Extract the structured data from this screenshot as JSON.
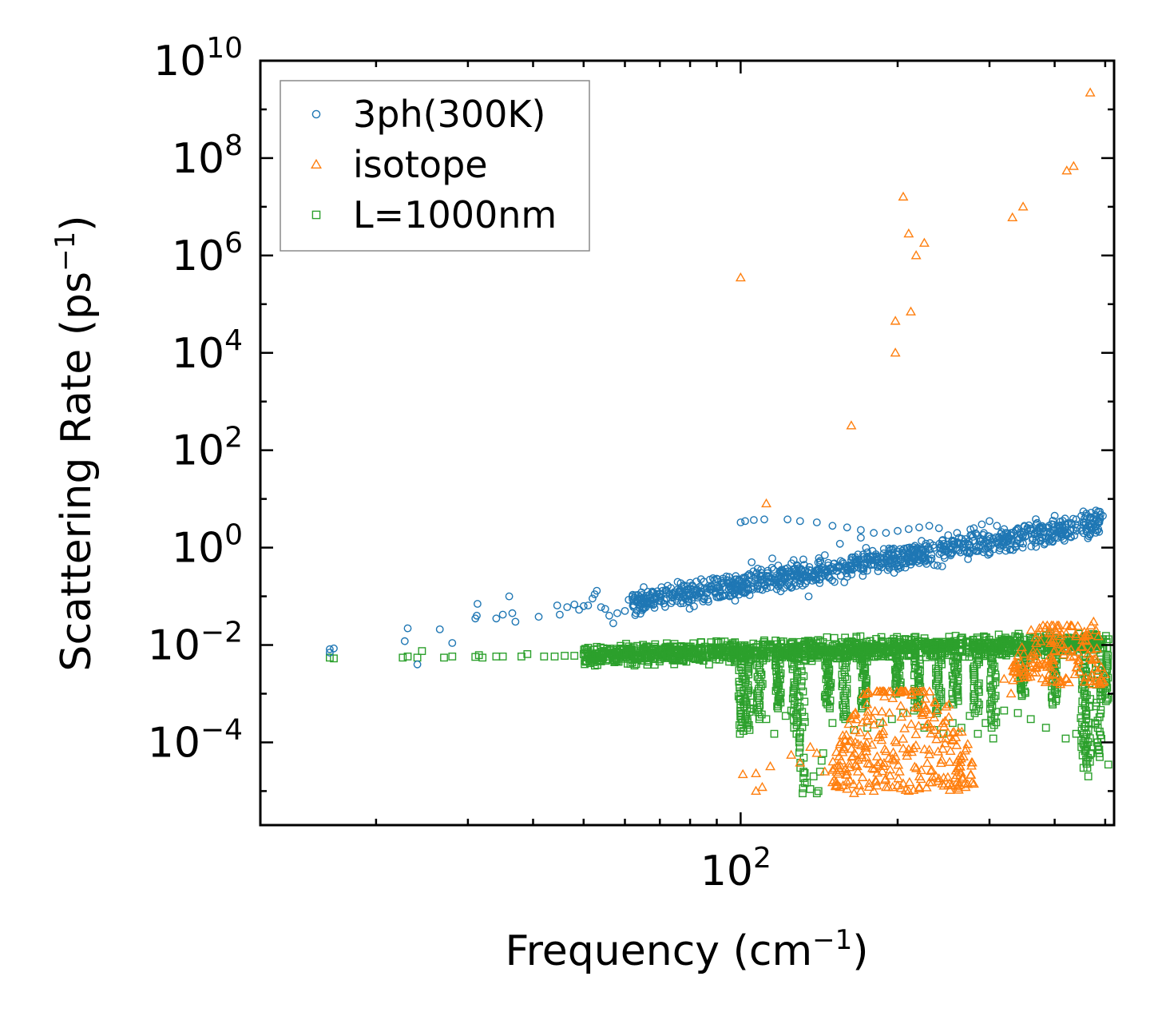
{
  "chart_data": {
    "type": "scatter",
    "title": "",
    "xlabel": "Frequency (cm",
    "xlabel_sup": "−1",
    "xlabel_end": ")",
    "ylabel": "Scattering Rate (ps",
    "ylabel_sup": "−1",
    "ylabel_end": ")",
    "xscale": "log",
    "yscale": "log",
    "xlim": [
      12,
      520
    ],
    "ylim": [
      2e-06,
      10000000000.0
    ],
    "x_ticks": [
      {
        "value": 100,
        "base": "10",
        "exp": "2"
      }
    ],
    "y_ticks": [
      {
        "value": 0.0001,
        "base": "10",
        "exp": "−4"
      },
      {
        "value": 0.01,
        "base": "10",
        "exp": "−2"
      },
      {
        "value": 1,
        "base": "10",
        "exp": "0"
      },
      {
        "value": 100.0,
        "base": "10",
        "exp": "2"
      },
      {
        "value": 10000.0,
        "base": "10",
        "exp": "4"
      },
      {
        "value": 1000000.0,
        "base": "10",
        "exp": "6"
      },
      {
        "value": 100000000.0,
        "base": "10",
        "exp": "8"
      },
      {
        "value": 10000000000.0,
        "base": "10",
        "exp": "10"
      }
    ],
    "legend_position": "top-left",
    "grid": false,
    "series": [
      {
        "name": "3ph(300K)",
        "marker": "circle",
        "color": "#1f77b4",
        "points": [
          [
            16.3,
            0.0082
          ],
          [
            16.6,
            0.0085
          ],
          [
            16.3,
            0.007
          ],
          [
            23,
            0.022
          ],
          [
            22.7,
            0.012
          ],
          [
            24,
            0.004
          ],
          [
            26.5,
            0.021
          ],
          [
            28,
            0.011
          ],
          [
            31.3,
            0.07
          ],
          [
            31,
            0.035
          ],
          [
            31.2,
            0.04
          ],
          [
            36,
            0.1
          ],
          [
            36.5,
            0.045
          ],
          [
            35,
            0.042
          ],
          [
            34,
            0.035
          ],
          [
            37,
            0.03
          ],
          [
            41,
            0.038
          ],
          [
            44.5,
            0.065
          ],
          [
            45,
            0.042
          ],
          [
            46.5,
            0.06
          ],
          [
            48,
            0.068
          ],
          [
            49,
            0.053
          ],
          [
            50,
            0.063
          ],
          [
            51,
            0.065
          ],
          [
            52,
            0.09
          ],
          [
            53,
            0.13
          ],
          [
            54,
            0.06
          ],
          [
            55,
            0.055
          ],
          [
            56,
            0.04
          ],
          [
            57,
            0.028
          ],
          [
            52.5,
            0.11
          ],
          [
            58,
            0.045
          ],
          [
            60,
            0.05
          ],
          [
            61,
            0.085
          ],
          [
            62,
            0.1
          ],
          [
            63,
            0.045
          ],
          [
            64,
            0.09
          ],
          [
            65,
            0.055
          ],
          [
            66,
            0.07
          ],
          [
            68,
            0.12
          ],
          [
            70,
            0.11
          ],
          [
            72,
            0.09
          ],
          [
            74,
            0.08
          ],
          [
            76,
            0.12
          ],
          [
            78,
            0.16
          ],
          [
            80,
            0.19
          ],
          [
            85,
            0.2
          ],
          [
            90,
            0.23
          ],
          [
            95,
            0.25
          ],
          [
            100,
            3.3
          ],
          [
            102,
            3.5
          ],
          [
            106,
            3.7
          ],
          [
            111,
            3.8
          ],
          [
            123,
            3.8
          ],
          [
            130,
            3.5
          ],
          [
            140,
            3.3
          ],
          [
            150,
            2.8
          ],
          [
            160,
            2.6
          ],
          [
            170,
            2.3
          ],
          [
            180,
            2.0
          ],
          [
            175,
            0.8
          ],
          [
            165,
            0.5
          ],
          [
            150,
            0.4
          ],
          [
            140,
            0.35
          ],
          [
            130,
            0.25
          ],
          [
            125,
            0.15
          ],
          [
            135,
            0.1
          ],
          [
            120,
            0.3
          ],
          [
            110,
            0.22
          ],
          [
            105,
            0.5
          ],
          [
            115,
            0.6
          ],
          [
            145,
            0.7
          ],
          [
            155,
            1.2
          ],
          [
            170,
            1.6
          ],
          [
            190,
            2.0
          ],
          [
            200,
            2.2
          ],
          [
            210,
            2.4
          ],
          [
            220,
            2.6
          ],
          [
            230,
            2.8
          ],
          [
            240,
            2.5
          ],
          [
            250,
            1.8
          ],
          [
            255,
            1.4
          ],
          [
            260,
            2.0
          ],
          [
            270,
            1.5
          ],
          [
            280,
            2.5
          ],
          [
            290,
            3.0
          ],
          [
            300,
            3.5
          ],
          [
            310,
            2.8
          ],
          [
            320,
            2.4
          ],
          [
            330,
            2.0
          ],
          [
            340,
            2.5
          ],
          [
            350,
            2.8
          ],
          [
            360,
            2.3
          ],
          [
            370,
            2.2
          ],
          [
            380,
            2.6
          ],
          [
            390,
            2.8
          ],
          [
            395,
            1.8
          ],
          [
            400,
            1.6
          ],
          [
            410,
            2.8
          ],
          [
            420,
            2.6
          ],
          [
            430,
            3.2
          ],
          [
            440,
            3.8
          ],
          [
            450,
            4.5
          ],
          [
            460,
            5.0
          ],
          [
            470,
            5.2
          ],
          [
            480,
            5.8
          ],
          [
            485,
            5.5
          ],
          [
            490,
            4.8
          ],
          [
            495,
            4.5
          ],
          [
            470,
            3.0
          ],
          [
            460,
            2.2
          ],
          [
            475,
            2.5
          ],
          [
            455,
            3.3
          ]
        ],
        "band": {
          "x_start": 62,
          "x_end": 490,
          "y_start": 0.07,
          "y_end": 3.2,
          "spread": 2.4,
          "count": 950
        }
      },
      {
        "name": "isotope",
        "marker": "triangle",
        "color": "#ff7f0e",
        "points": [
          [
            468,
            2200000000.0
          ],
          [
            435,
            68000000.0
          ],
          [
            422,
            55000000.0
          ],
          [
            348,
            10000000.0
          ],
          [
            332,
            6000000.0
          ],
          [
            205,
            16000000.0
          ],
          [
            210,
            2800000.0
          ],
          [
            225,
            1800000.0
          ],
          [
            217,
            1000000.0
          ],
          [
            100,
            350000.0
          ],
          [
            198,
            45000.0
          ],
          [
            212,
            70000.0
          ],
          [
            198,
            10000.0
          ],
          [
            163,
            320.0
          ],
          [
            112,
            8.0
          ],
          [
            101,
            2.2e-05
          ],
          [
            107,
            2.3e-05
          ],
          [
            110,
            1.2e-05
          ],
          [
            114,
            3.2e-05
          ],
          [
            107,
            1e-05
          ],
          [
            125,
            5.5e-05
          ],
          [
            130,
            3.8e-05
          ],
          [
            136,
            8e-05
          ],
          [
            140,
            6e-05
          ],
          [
            145,
            2.5e-05
          ],
          [
            150,
            1.5e-05
          ],
          [
            155,
            1.2e-05
          ],
          [
            160,
            1.1e-05
          ],
          [
            165,
            9e-06
          ],
          [
            170,
            1e-05
          ],
          [
            180,
            1e-05
          ],
          [
            190,
            1.2e-05
          ],
          [
            200,
            1.3e-05
          ],
          [
            210,
            1e-05
          ],
          [
            220,
            1.2e-05
          ],
          [
            230,
            1.5e-05
          ],
          [
            240,
            1.8e-05
          ],
          [
            250,
            1.3e-05
          ],
          [
            260,
            1.5e-05
          ],
          [
            270,
            1.2e-05
          ],
          [
            280,
            1.4e-05
          ],
          [
            380,
            0.025
          ],
          [
            390,
            0.018
          ],
          [
            395,
            0.012
          ],
          [
            400,
            0.02
          ],
          [
            405,
            0.022
          ],
          [
            410,
            0.015
          ],
          [
            415,
            0.01
          ],
          [
            430,
            0.008
          ],
          [
            440,
            0.015
          ],
          [
            450,
            0.009
          ],
          [
            460,
            0.012
          ],
          [
            470,
            0.025
          ],
          [
            475,
            0.03
          ],
          [
            480,
            0.02
          ],
          [
            485,
            0.015
          ],
          [
            340,
            0.006
          ],
          [
            360,
            0.005
          ],
          [
            370,
            0.007
          ],
          [
            320,
            0.002
          ],
          [
            330,
            0.001
          ]
        ],
        "clusters": [
          {
            "x_start": 150,
            "x_end": 280,
            "y_min": 1e-05,
            "y_max": 0.0011,
            "count": 280
          },
          {
            "x_start": 330,
            "x_end": 500,
            "y_min": 0.0015,
            "y_max": 0.025,
            "count": 140
          }
        ]
      },
      {
        "name": "L=1000nm",
        "marker": "square",
        "color": "#2ca02c",
        "points": [
          [
            16.3,
            0.0055
          ],
          [
            16.6,
            0.0053
          ],
          [
            22.5,
            0.0055
          ],
          [
            23,
            0.0058
          ],
          [
            24,
            0.0055
          ],
          [
            24.5,
            0.0075
          ],
          [
            27,
            0.0055
          ],
          [
            28,
            0.0058
          ],
          [
            31,
            0.0057
          ],
          [
            32,
            0.0055
          ],
          [
            31.5,
            0.0062
          ],
          [
            34,
            0.0058
          ],
          [
            35,
            0.0058
          ],
          [
            38,
            0.0058
          ],
          [
            39,
            0.0065
          ],
          [
            42,
            0.0058
          ],
          [
            44,
            0.0058
          ],
          [
            46,
            0.006
          ],
          [
            48,
            0.006
          ],
          [
            50,
            0.0065
          ],
          [
            100,
            0.0008
          ],
          [
            102,
            0.0003
          ],
          [
            104,
            0.00018
          ],
          [
            106,
            0.0005
          ],
          [
            112,
            0.0003
          ],
          [
            116,
            0.00015
          ],
          [
            122,
            0.00035
          ],
          [
            125,
            0.00045
          ],
          [
            128,
            0.00015
          ],
          [
            130,
            0.00012
          ],
          [
            132,
            2.5e-05
          ],
          [
            134,
            1.5e-05
          ],
          [
            136,
            1.1e-05
          ],
          [
            138,
            2e-05
          ],
          [
            140,
            9e-06
          ],
          [
            141,
            1e-05
          ],
          [
            142,
            2.5e-05
          ],
          [
            143,
            4.2e-05
          ],
          [
            144,
            6e-05
          ],
          [
            150,
            0.00025
          ],
          [
            160,
            0.00035
          ],
          [
            165,
            0.00018
          ],
          [
            175,
            0.0002
          ],
          [
            185,
            0.00025
          ],
          [
            195,
            0.0003
          ],
          [
            205,
            0.0004
          ],
          [
            215,
            0.00045
          ],
          [
            225,
            0.0002
          ],
          [
            235,
            0.00018
          ],
          [
            245,
            0.00015
          ],
          [
            255,
            0.00025
          ],
          [
            265,
            0.0002
          ],
          [
            275,
            0.00035
          ],
          [
            285,
            0.00015
          ],
          [
            295,
            0.00025
          ],
          [
            305,
            0.00012
          ],
          [
            320,
            0.00045
          ],
          [
            340,
            0.0004
          ],
          [
            360,
            0.0003
          ],
          [
            385,
            0.0002
          ],
          [
            420,
            0.00012
          ],
          [
            440,
            0.00015
          ],
          [
            450,
            0.00011
          ],
          [
            455,
            9e-05
          ],
          [
            458,
            8e-05
          ],
          [
            460,
            4e-05
          ],
          [
            462,
            3e-05
          ],
          [
            464,
            2e-05
          ],
          [
            470,
            6e-05
          ],
          [
            478,
            0.00025
          ],
          [
            482,
            0.0001
          ],
          [
            484,
            8e-05
          ],
          [
            486,
            7e-05
          ],
          [
            488,
            5e-05
          ],
          [
            507,
            3.5e-05
          ]
        ],
        "band": {
          "x_start": 50,
          "x_end": 508,
          "y_start": 0.006,
          "y_end": 0.011,
          "spread": 2.0,
          "count": 1400
        },
        "dips": [
          {
            "x": 100,
            "depth": 0.00015
          },
          {
            "x": 103,
            "depth": 0.0002
          },
          {
            "x": 109,
            "depth": 0.0003
          },
          {
            "x": 118,
            "depth": 0.0005
          },
          {
            "x": 127,
            "depth": 0.0002
          },
          {
            "x": 131,
            "depth": 9e-06
          },
          {
            "x": 147,
            "depth": 0.0005
          },
          {
            "x": 158,
            "depth": 0.0003
          },
          {
            "x": 172,
            "depth": 0.0005
          },
          {
            "x": 200,
            "depth": 0.001
          },
          {
            "x": 218,
            "depth": 0.0005
          },
          {
            "x": 240,
            "depth": 0.0004
          },
          {
            "x": 258,
            "depth": 0.0006
          },
          {
            "x": 283,
            "depth": 0.0004
          },
          {
            "x": 305,
            "depth": 0.0002
          },
          {
            "x": 347,
            "depth": 0.0009
          },
          {
            "x": 400,
            "depth": 0.0006
          },
          {
            "x": 455,
            "depth": 3e-05
          },
          {
            "x": 462,
            "depth": 4e-05
          },
          {
            "x": 485,
            "depth": 6e-05
          },
          {
            "x": 500,
            "depth": 0.0007
          }
        ]
      }
    ]
  }
}
